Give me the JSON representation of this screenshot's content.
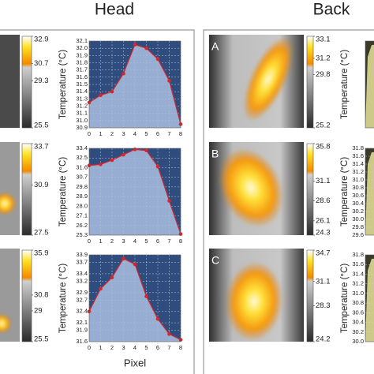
{
  "titles": [
    "Head",
    "Back"
  ],
  "chart_data": [
    {
      "type": "area",
      "ylabel": "Temperature (°C)",
      "color": "#a9c0e0",
      "line_color": "#d9262c",
      "colorbar_ticks": [
        32.9,
        30.7,
        29.3,
        25.5
      ],
      "x": [
        0,
        1,
        2,
        3,
        4,
        5,
        6,
        7,
        8
      ],
      "values": [
        31.25,
        31.35,
        31.4,
        31.65,
        32.05,
        32.0,
        31.85,
        31.55,
        30.95
      ],
      "xlim": [
        0,
        8
      ],
      "xticks": [
        0,
        1,
        2,
        3,
        4,
        5,
        6,
        7,
        8
      ],
      "ylim": [
        30.9,
        32.1
      ],
      "yticks": [
        30.9,
        {
          "value": 31,
          "label": "31.0"
        },
        31.1,
        31.2,
        31.3,
        31.4,
        31.5,
        31.6,
        31.7,
        31.8,
        31.9,
        {
          "value": 32,
          "label": "32.0"
        },
        32.1
      ],
      "grid": true
    },
    {
      "type": "area",
      "ylabel": "Temperature (°C)",
      "color": "#a9c0e0",
      "line_color": "#d9262c",
      "colorbar_ticks": [
        33.7,
        30.9,
        27.5
      ],
      "x": [
        0,
        1,
        2,
        3,
        4,
        5,
        6,
        7,
        8
      ],
      "values": [
        31.8,
        31.9,
        32.3,
        32.8,
        33.3,
        33.2,
        31.7,
        28.5,
        25.4
      ],
      "xlim": [
        0,
        8
      ],
      "xticks": [
        0,
        1,
        2,
        3,
        4,
        5,
        6,
        7,
        8
      ],
      "ylim": [
        25.3,
        33.4
      ],
      "yticks": [
        25.3,
        26.2,
        27.1,
        {
          "value": 28,
          "label": "28.0"
        },
        28.9,
        29.8,
        30.7,
        31.6,
        32.5,
        33.4
      ],
      "grid": true
    },
    {
      "type": "area",
      "ylabel": "Temperature (°C)",
      "xlabel": "Pixel",
      "color": "#a9c0e0",
      "line_color": "#d9262c",
      "colorbar_ticks": [
        35.9,
        30.8,
        29.0,
        25.5
      ],
      "x": [
        0,
        1,
        2,
        3,
        4,
        5,
        6,
        7,
        8
      ],
      "values": [
        32.4,
        33.0,
        33.3,
        33.8,
        33.65,
        32.8,
        32.2,
        31.8,
        31.65
      ],
      "xlim": [
        0,
        8
      ],
      "xticks": [
        0,
        1,
        2,
        3,
        4,
        5,
        6,
        7,
        8
      ],
      "ylim": [
        31.6,
        33.9
      ],
      "yticks": [
        31.6,
        31.9,
        32.1,
        32.4,
        32.7,
        32.9,
        33.2,
        33.4,
        33.7,
        33.9
      ],
      "grid": true
    },
    {
      "type": "area",
      "panel_label": "A",
      "ylabel": "Temperature (°C)",
      "color": "#e8e39a",
      "colorbar_ticks": [
        33.1,
        31.2,
        29.8,
        25.2
      ],
      "ylim": [
        29.6,
        31.8
      ],
      "yticks": [],
      "grid": true
    },
    {
      "type": "area",
      "panel_label": "B",
      "ylabel": "Temperature (°C)",
      "color": "#e8e39a",
      "colorbar_ticks": [
        35.8,
        31.1,
        28.6,
        26.1,
        24.3
      ],
      "ylim": [
        29.6,
        31.8
      ],
      "yticks": [
        29.6,
        29.8,
        {
          "value": 30,
          "label": "30.0"
        },
        30.2,
        30.4,
        30.6,
        30.8,
        {
          "value": 31,
          "label": "31.0"
        },
        31.2,
        31.4,
        31.6,
        31.8
      ],
      "grid": true
    },
    {
      "type": "area",
      "panel_label": "C",
      "ylabel": "Temperature (°C)",
      "color": "#e8e39a",
      "colorbar_ticks": [
        34.7,
        31.1,
        28.3,
        24.2
      ],
      "ylim": [
        30.0,
        31.8
      ],
      "yticks": [
        {
          "value": 30,
          "label": "30.0"
        },
        30.2,
        30.4,
        30.6,
        30.8,
        {
          "value": 31,
          "label": "31.0"
        },
        31.2,
        31.4,
        31.6,
        31.8
      ],
      "grid": true
    }
  ]
}
